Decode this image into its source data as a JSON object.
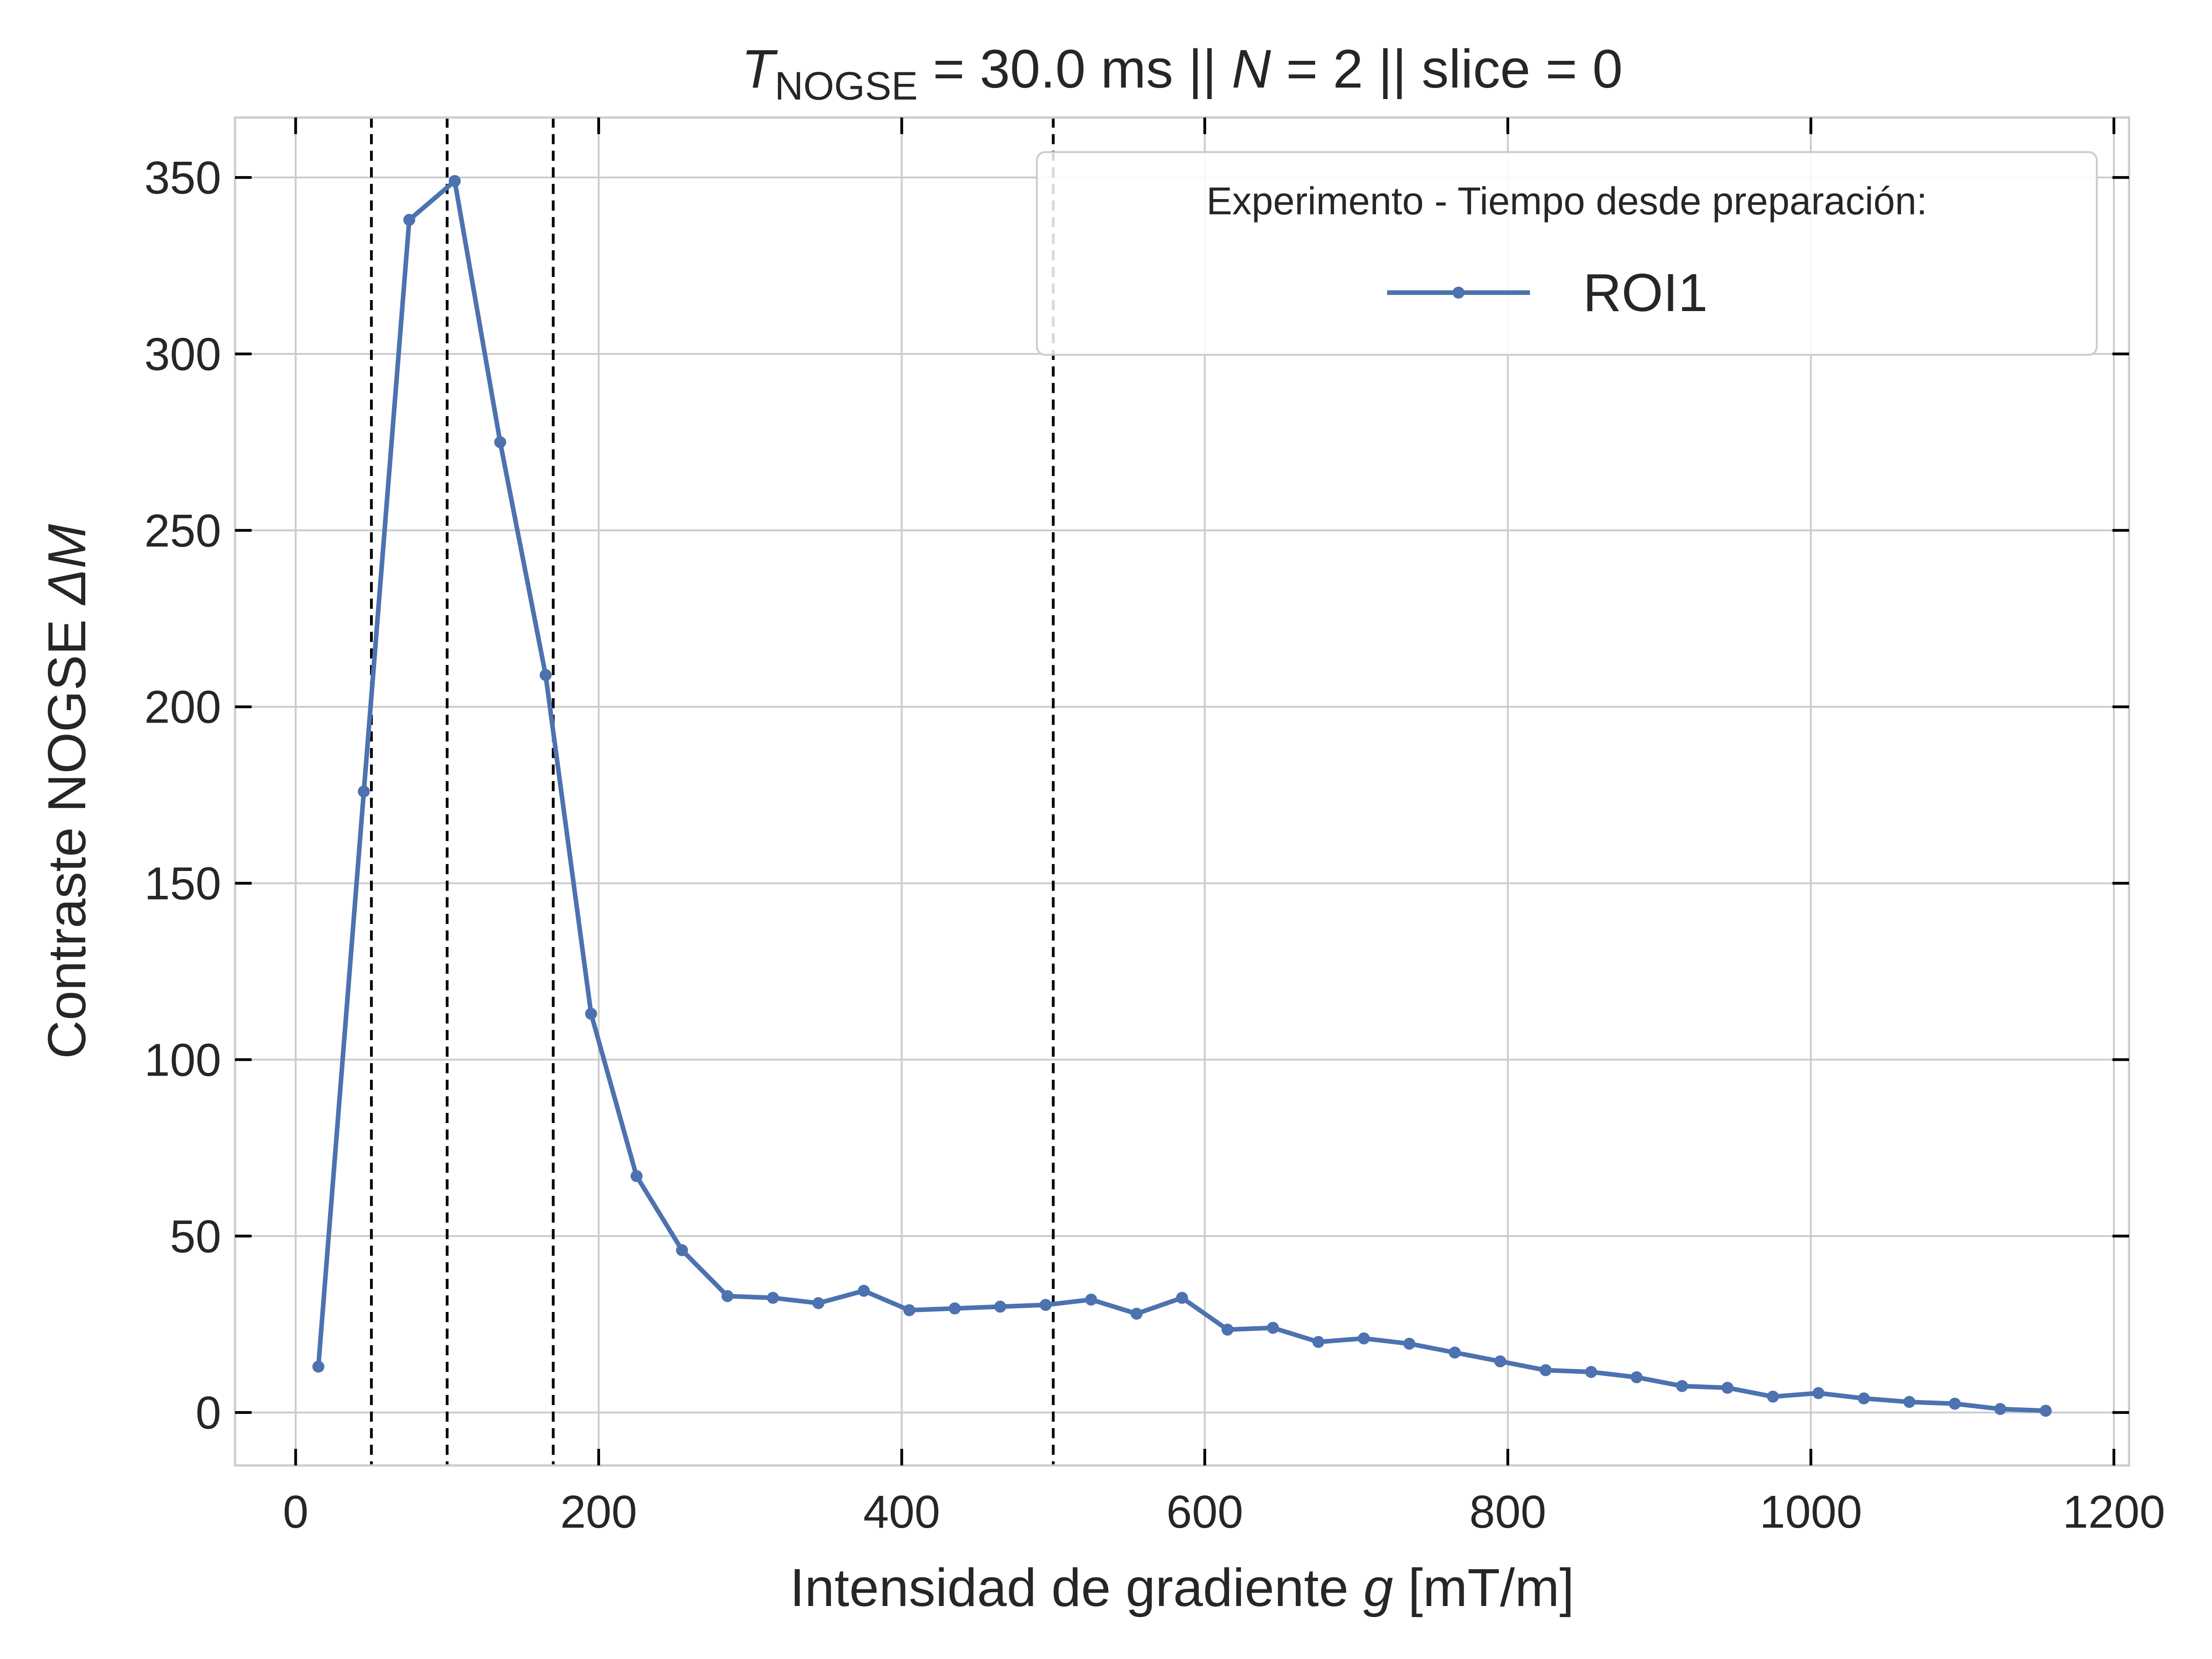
{
  "chart_data": {
    "type": "line",
    "title": {
      "T_symbol": "T",
      "T_subscript": "NOGSE",
      "part1": " = 30.0 ms  ||  ",
      "N_symbol": "N",
      "part2": " = 2 || slice = 0"
    },
    "xlabel": {
      "text": "Intensidad de gradiente ",
      "var": "g",
      "units": " [mT/m]"
    },
    "ylabel": {
      "text": "Contraste NOGSE ",
      "var": "ΔM"
    },
    "xlim": [
      -40,
      1210
    ],
    "ylim": [
      -15,
      367
    ],
    "xticks": [
      0,
      200,
      400,
      600,
      800,
      1000,
      1200
    ],
    "yticks": [
      0,
      50,
      100,
      150,
      200,
      250,
      300,
      350
    ],
    "grid": true,
    "vlines": [
      50,
      100,
      170,
      500
    ],
    "legend": {
      "title": "Experimento - Tiempo desde preparación:",
      "position": "top-right"
    },
    "series": [
      {
        "name": "ROI1",
        "color": "#4c72b0",
        "x": [
          15,
          45,
          75,
          105,
          135,
          165,
          195,
          225,
          255,
          285,
          315,
          345,
          375,
          405,
          435,
          465,
          495,
          525,
          555,
          585,
          615,
          645,
          675,
          705,
          735,
          765,
          795,
          825,
          855,
          885,
          915,
          945,
          975,
          1005,
          1035,
          1065,
          1095,
          1125,
          1155
        ],
        "y": [
          13,
          176,
          338,
          349,
          275,
          209,
          113,
          67,
          46,
          33,
          32.5,
          31,
          34.5,
          29,
          29.5,
          30,
          30.5,
          32,
          28,
          32.5,
          23.5,
          24,
          20,
          21,
          19.5,
          17,
          14.5,
          12,
          11.5,
          10,
          7.5,
          7,
          4.5,
          5.5,
          4,
          3,
          2.5,
          1,
          0.5
        ]
      }
    ]
  }
}
